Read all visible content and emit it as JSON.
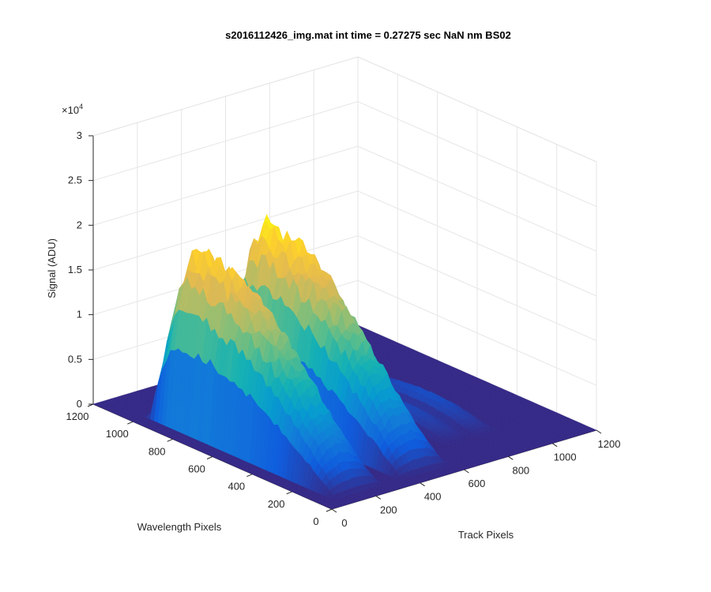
{
  "chart_data": {
    "type": "surface",
    "title": "s2016112426_img.mat int time = 0.27275 sec  NaN nm BS02",
    "xlabel": "Track Pixels",
    "ylabel": "Wavelength Pixels",
    "zlabel": "Signal (ADU)",
    "z_exponent_label": "×10",
    "z_exponent_power": "4",
    "xlim": [
      0,
      1200
    ],
    "ylim": [
      0,
      1200
    ],
    "zlim": [
      0,
      30000
    ],
    "x_ticks": [
      0,
      200,
      400,
      600,
      800,
      1000,
      1200
    ],
    "y_ticks": [
      0,
      200,
      400,
      600,
      800,
      1000,
      1200
    ],
    "z_ticks": [
      0,
      0.5,
      1,
      1.5,
      2,
      2.5,
      3
    ],
    "grid": true,
    "colormap": "parula",
    "bands": [
      {
        "track_center": 180,
        "track_halfwidth": 120,
        "peak_signal": 20000,
        "wavelength_start": 70,
        "wavelength_peak": 860,
        "wavelength_end": 1000
      },
      {
        "track_center": 480,
        "track_halfwidth": 120,
        "peak_signal": 21000,
        "wavelength_start": 70,
        "wavelength_peak": 860,
        "wavelength_end": 1000
      },
      {
        "track_center": 760,
        "track_halfwidth": 60,
        "peak_signal": 1500,
        "wavelength_start": 200,
        "wavelength_peak": 500,
        "wavelength_end": 900
      },
      {
        "track_center": 880,
        "track_halfwidth": 60,
        "peak_signal": 1800,
        "wavelength_start": 200,
        "wavelength_peak": 500,
        "wavelength_end": 900
      }
    ]
  }
}
